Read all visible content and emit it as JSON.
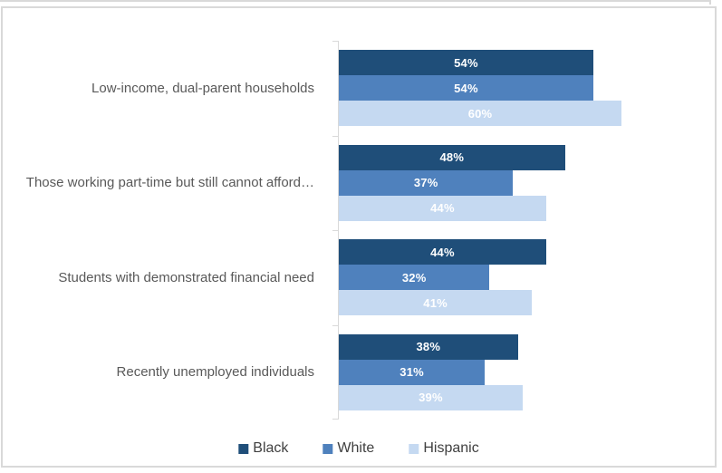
{
  "chart_data": {
    "type": "bar",
    "orientation": "horizontal",
    "title": "",
    "categories": [
      "Low-income, dual-parent households",
      "Those working part-time but still cannot afford…",
      "Students with demonstrated financial need",
      "Recently unemployed individuals"
    ],
    "series": [
      {
        "name": "Black",
        "color": "#1F4E79",
        "values": [
          54,
          48,
          44,
          38
        ],
        "labels": [
          "54%",
          "48%",
          "44%",
          "38%"
        ]
      },
      {
        "name": "White",
        "color": "#4F81BD",
        "values": [
          54,
          37,
          32,
          31
        ],
        "labels": [
          "54%",
          "37%",
          "32%",
          "31%"
        ]
      },
      {
        "name": "Hispanic",
        "color": "#C5D9F1",
        "values": [
          60,
          44,
          41,
          39
        ],
        "labels": [
          "60%",
          "44%",
          "41%",
          "39%"
        ]
      }
    ],
    "xlim": [
      0,
      70
    ],
    "grid": false,
    "legend_position": "bottom",
    "value_label_position": "center"
  },
  "colors": {
    "frame_border": "#D9D9D9",
    "axis": "#D9D9D9",
    "category_text": "#595959",
    "legend_text": "#404040",
    "value_text": "#FFFFFF",
    "background": "#FFFFFF"
  }
}
